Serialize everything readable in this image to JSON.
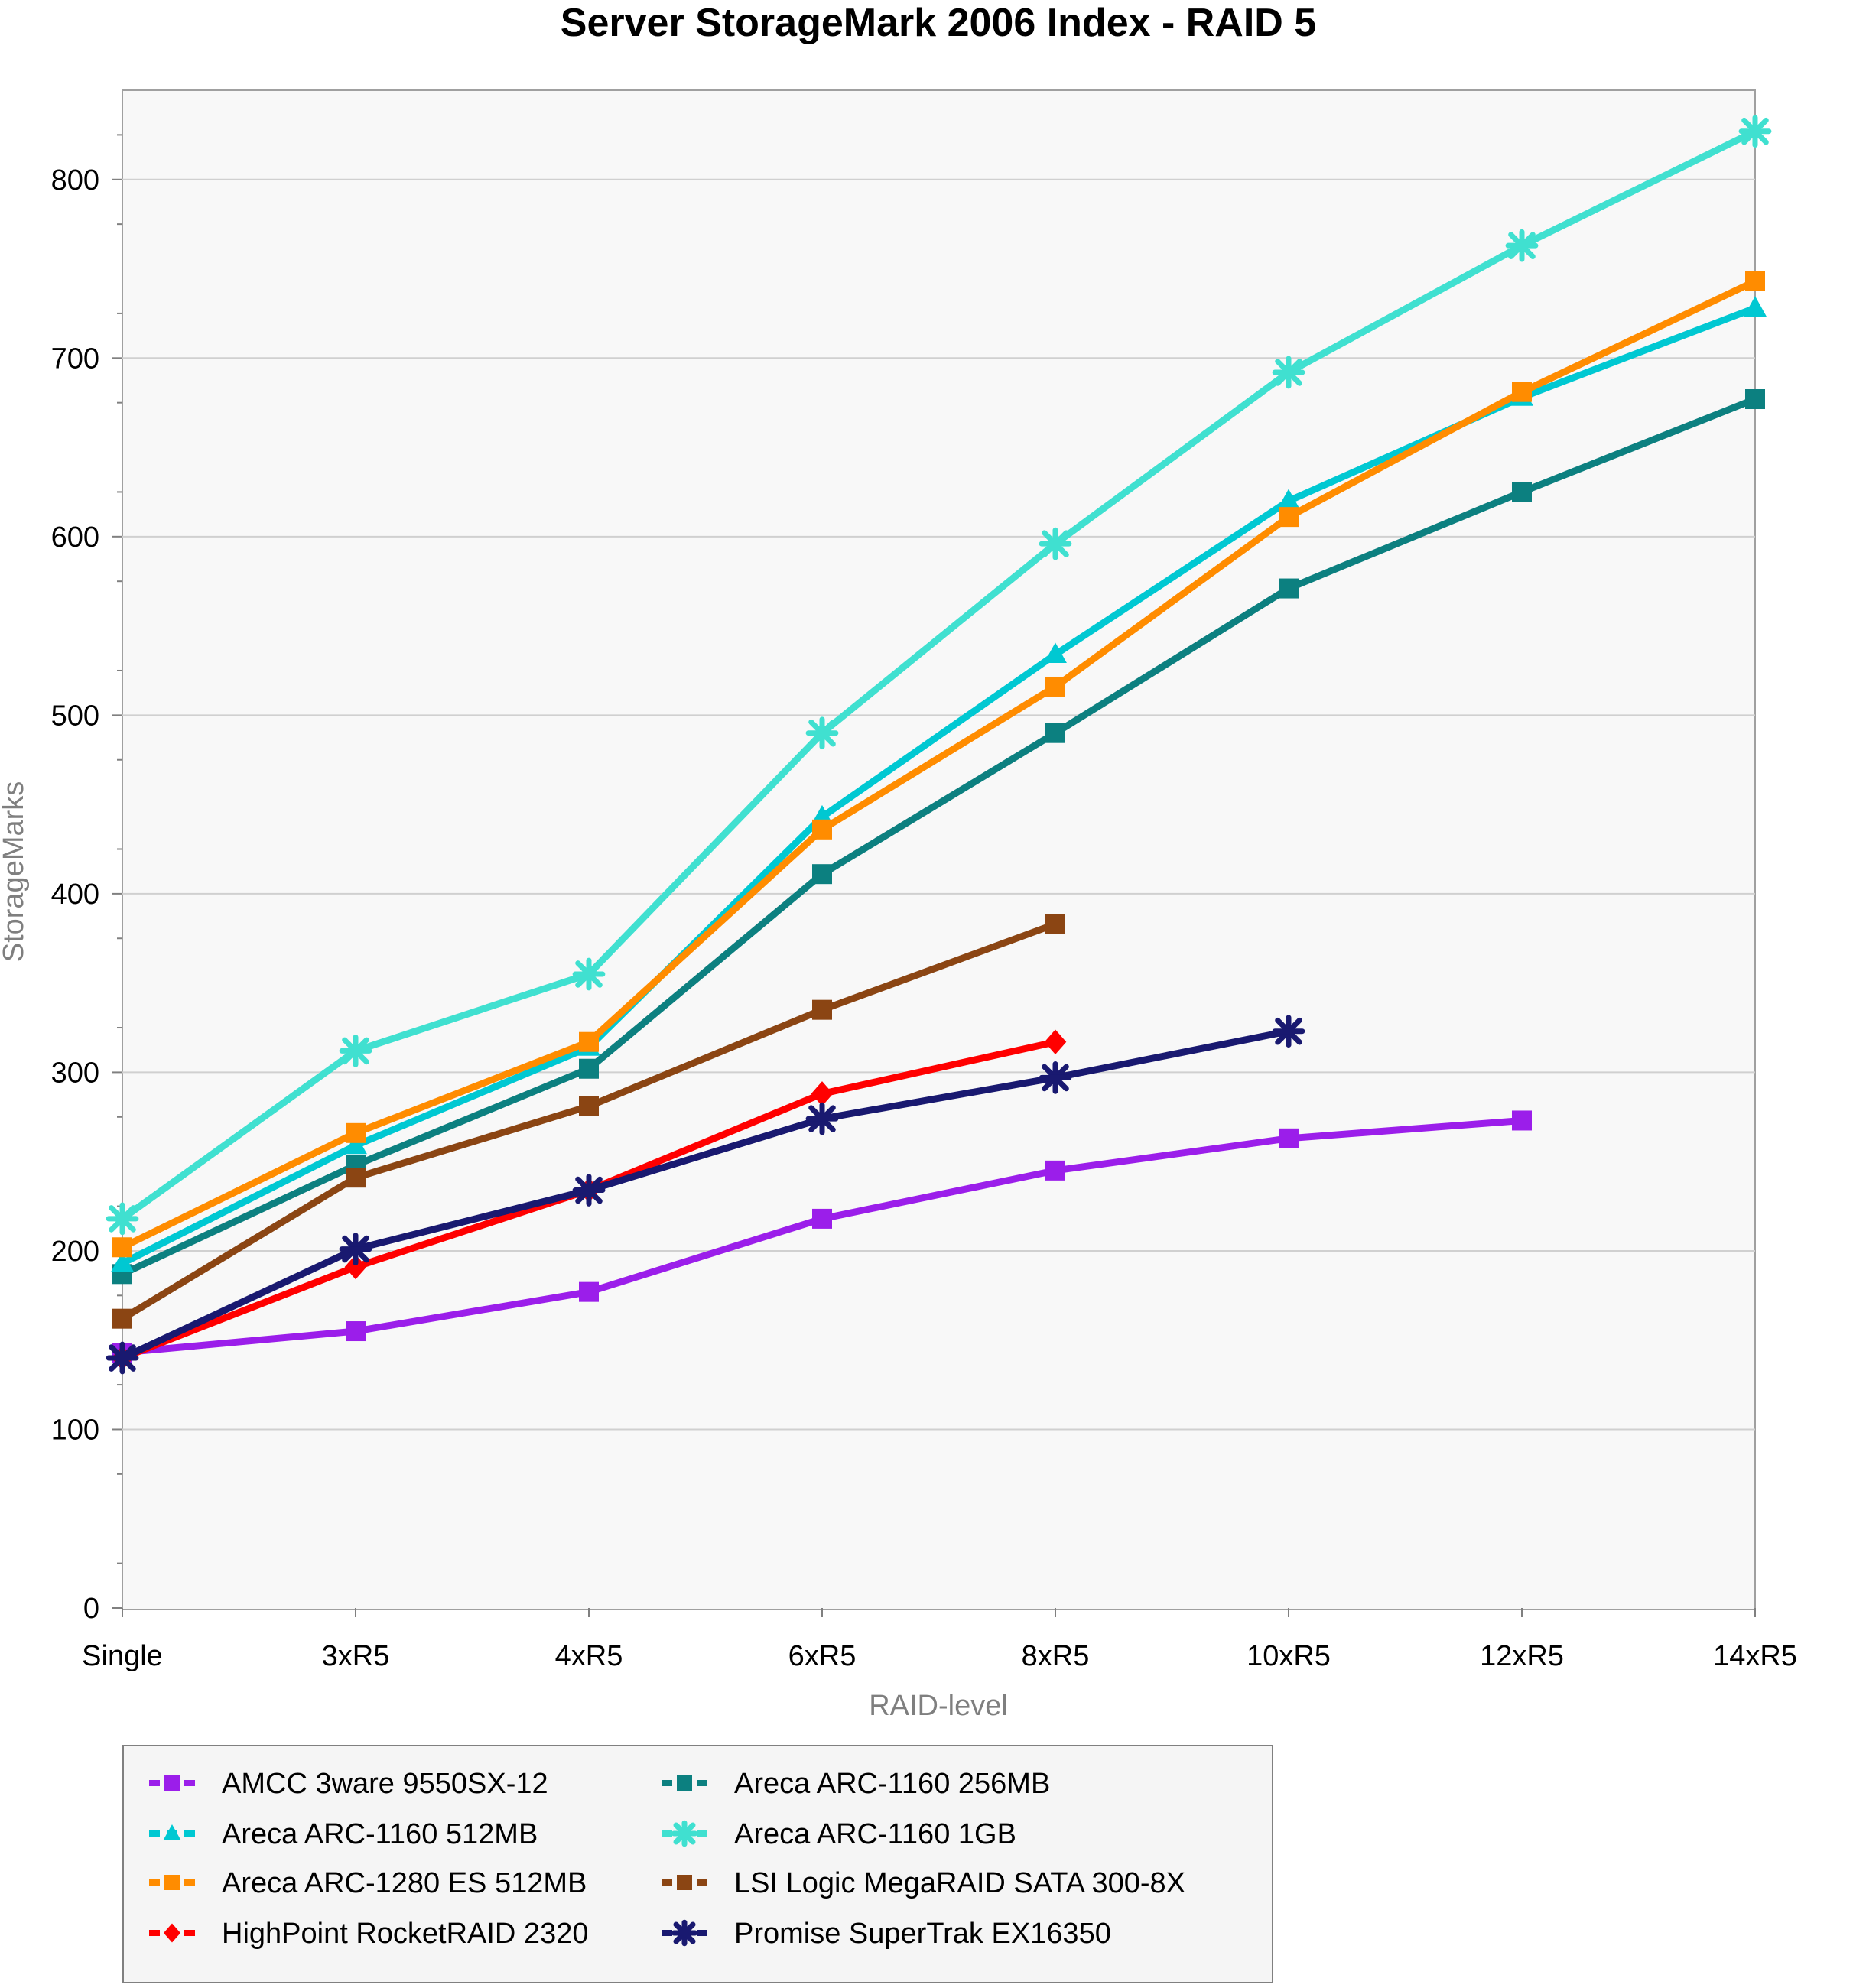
{
  "chart_data": {
    "type": "line",
    "title": "Server StorageMark 2006 Index - RAID 5",
    "xlabel": "RAID-level",
    "ylabel": "StorageMarks",
    "categories": [
      "Single",
      "3xR5",
      "4xR5",
      "6xR5",
      "8xR5",
      "10xR5",
      "12xR5",
      "14xR5"
    ],
    "ylim": [
      0,
      850
    ],
    "yticks": [
      0,
      100,
      200,
      300,
      400,
      500,
      600,
      700,
      800
    ],
    "grid": true,
    "legend_position": "bottom",
    "series": [
      {
        "name": "AMCC 3ware 9550SX-12",
        "color": "#9b1eea",
        "marker": "square",
        "values": [
          143,
          155,
          177,
          218,
          245,
          263,
          273,
          null
        ]
      },
      {
        "name": "Areca ARC-1160 256MB",
        "color": "#0c8080",
        "marker": "square",
        "values": [
          187,
          248,
          302,
          411,
          490,
          571,
          625,
          677
        ]
      },
      {
        "name": "Areca ARC-1160 512MB",
        "color": "#00c8d2",
        "marker": "triangle",
        "values": [
          193,
          259,
          314,
          443,
          534,
          620,
          678,
          728
        ]
      },
      {
        "name": "Areca ARC-1160 1GB",
        "color": "#40e0d0",
        "marker": "asterisk",
        "values": [
          218,
          312,
          355,
          490,
          596,
          692,
          763,
          827
        ]
      },
      {
        "name": "Areca ARC-1280 ES 512MB",
        "color": "#ff8c00",
        "marker": "square",
        "values": [
          202,
          266,
          317,
          436,
          516,
          611,
          681,
          743
        ]
      },
      {
        "name": "LSI Logic MegaRAID SATA 300-8X",
        "color": "#8b4513",
        "marker": "square",
        "values": [
          162,
          241,
          281,
          335,
          383,
          null,
          null,
          null
        ]
      },
      {
        "name": "HighPoint RocketRAID 2320",
        "color": "#ff0000",
        "marker": "diamond",
        "values": [
          140,
          191,
          234,
          288,
          317,
          null,
          null,
          null
        ]
      },
      {
        "name": "Promise SuperTrak EX16350",
        "color": "#191970",
        "marker": "asterisk",
        "values": [
          140,
          201,
          234,
          274,
          297,
          323,
          null,
          null
        ]
      }
    ]
  }
}
